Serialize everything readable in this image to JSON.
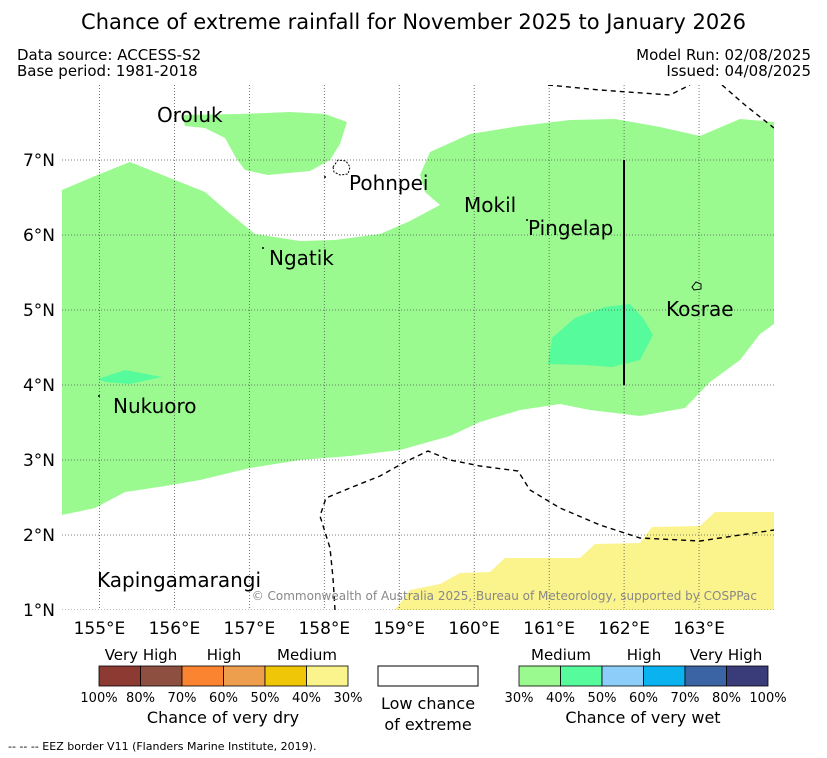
{
  "title": "Chance of extreme rainfall for November 2025 to January 2026",
  "meta": {
    "data_source": "Data source: ACCESS-S2",
    "base_period": "Base period: 1981-2018",
    "model_run": "Model Run: 02/08/2025",
    "issued": "Issued: 04/08/2025"
  },
  "map": {
    "lon_range": [
      154.5,
      164.0
    ],
    "lat_range": [
      1.0,
      8.0
    ],
    "lon_ticks": [
      155,
      156,
      157,
      158,
      159,
      160,
      161,
      162,
      163
    ],
    "lon_tick_labels": [
      "155°E",
      "156°E",
      "157°E",
      "158°E",
      "159°E",
      "160°E",
      "161°E",
      "162°E",
      "163°E"
    ],
    "lat_ticks": [
      1,
      2,
      3,
      4,
      5,
      6,
      7
    ],
    "lat_tick_labels": [
      "1°N",
      "2°N",
      "3°N",
      "4°N",
      "5°N",
      "6°N",
      "7°N"
    ],
    "grid": true,
    "places": [
      {
        "name": "Oroluk"
      },
      {
        "name": "Pohnpei"
      },
      {
        "name": "Mokil"
      },
      {
        "name": "Pingelap"
      },
      {
        "name": "Ngatik"
      },
      {
        "name": "Kosrae"
      },
      {
        "name": "Nukuoro"
      },
      {
        "name": "Kapingamarangi"
      }
    ],
    "copyright": "© Commonwealth of Australia 2025, Bureau of Meteorology, supported by COSPPac",
    "colors": {
      "wet_medium_30": "#9afa8f",
      "wet_medium_40": "#56fb9c",
      "dry_medium_30": "#fbf38c"
    }
  },
  "legend_dry": {
    "headings": [
      "Very High",
      "High",
      "Medium"
    ],
    "colors": [
      "#8c3a32",
      "#8c4f40",
      "#fb8430",
      "#ee9f4d",
      "#f0c708",
      "#fbf38c"
    ],
    "ticks": [
      "100%",
      "80%",
      "70%",
      "60%",
      "50%",
      "40%",
      "30%"
    ],
    "label": "Chance of very dry"
  },
  "legend_low": {
    "line1": "Low chance",
    "line2": "of extreme",
    "color": "#ffffff"
  },
  "legend_wet": {
    "headings": [
      "Medium",
      "High",
      "Very High"
    ],
    "colors": [
      "#9afa8f",
      "#56fb9c",
      "#8ccdfa",
      "#0ab3ef",
      "#3a64a4",
      "#3a3c7a"
    ],
    "ticks": [
      "30%",
      "40%",
      "50%",
      "60%",
      "70%",
      "80%",
      "100%"
    ],
    "label": "Chance of very wet"
  },
  "eez_note": "--  --  -- EEZ border V11 (Flanders Marine Institute, 2019)."
}
